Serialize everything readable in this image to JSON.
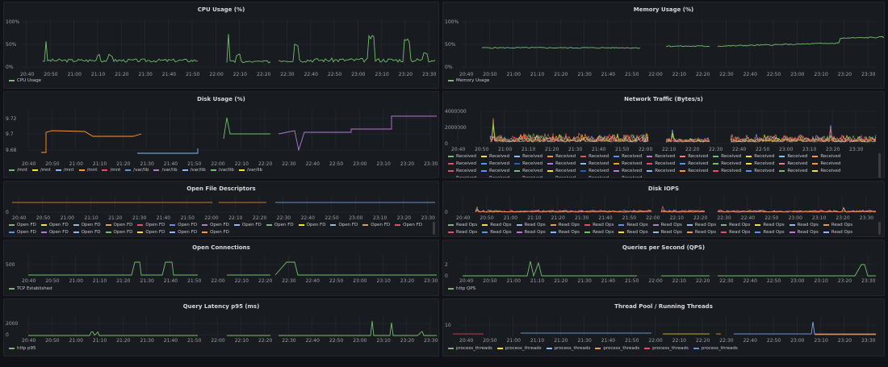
{
  "time_ticks_a": [
    "20:40",
    "20:50",
    "21:00",
    "21:10",
    "21:20",
    "21:30",
    "21:40",
    "21:50",
    "22:00",
    "22:10",
    "22:20",
    "22:30",
    "22:40",
    "22:50",
    "23:00",
    "23:10",
    "23:20",
    "23:30"
  ],
  "colors": {
    "green": "#73bf69",
    "yellow": "#fade2a",
    "orange": "#ff9830",
    "red": "#f2495c",
    "blue": "#5794f2",
    "purple": "#b877d9",
    "lblue": "#8ab8ff",
    "salmon": "#ff7383"
  },
  "panels": [
    {
      "id": "cpu",
      "title": "CPU Usage (%)",
      "y_ticks": [
        "100%",
        "50%",
        "0%"
      ],
      "legend": [
        {
          "label": "CPU Usage",
          "color": "#73bf69"
        }
      ]
    },
    {
      "id": "mem",
      "title": "Memory Usage (%)",
      "y_ticks": [
        "100%",
        "50%",
        "0%"
      ],
      "legend": [
        {
          "label": "Memory Usage",
          "color": "#73bf69"
        }
      ]
    },
    {
      "id": "disk",
      "title": "Disk Usage (%)",
      "y_ticks": [
        "9.72",
        "9.7",
        "9.68"
      ],
      "legend": [
        {
          "label": "/mnt",
          "color": "#73bf69"
        },
        {
          "label": "/mnt",
          "color": "#fade2a"
        },
        {
          "label": "/mnt",
          "color": "#8ab8ff"
        },
        {
          "label": "/mnt",
          "color": "#ff9830"
        },
        {
          "label": "/mnt",
          "color": "#f2495c"
        },
        {
          "label": "/var/lib",
          "color": "#5794f2"
        },
        {
          "label": "/var/lib",
          "color": "#b877d9"
        },
        {
          "label": "/var/lib",
          "color": "#8ab8ff"
        },
        {
          "label": "/var/lib",
          "color": "#73bf69"
        },
        {
          "label": "/var/lib",
          "color": "#fade2a"
        }
      ]
    },
    {
      "id": "net",
      "title": "Network Traffic (Bytes/s)",
      "y_ticks": [
        "4000000",
        "2000000",
        "0"
      ],
      "legend": [
        {
          "label": "Received",
          "color": "#73bf69"
        },
        {
          "label": "Received",
          "color": "#fade2a"
        },
        {
          "label": "Received",
          "color": "#8ab8ff"
        },
        {
          "label": "Received",
          "color": "#ff9830"
        },
        {
          "label": "Received",
          "color": "#f2495c"
        },
        {
          "label": "Received",
          "color": "#5794f2"
        },
        {
          "label": "Received",
          "color": "#b877d9"
        },
        {
          "label": "Received",
          "color": "#ff7383"
        },
        {
          "label": "Received",
          "color": "#73bf69"
        },
        {
          "label": "Received",
          "color": "#fade2a"
        },
        {
          "label": "Received",
          "color": "#8ab8ff"
        },
        {
          "label": "Received",
          "color": "#ff9830"
        },
        {
          "label": "Received",
          "color": "#f2495c"
        },
        {
          "label": "Received",
          "color": "#5794f2"
        },
        {
          "label": "Received",
          "color": "#1f60c4"
        },
        {
          "label": "Received",
          "color": "#b877d9"
        },
        {
          "label": "Received",
          "color": "#8ab8ff"
        },
        {
          "label": "Received",
          "color": "#ff9830"
        },
        {
          "label": "Received",
          "color": "#f2495c"
        },
        {
          "label": "Received",
          "color": "#5794f2"
        },
        {
          "label": "Received",
          "color": "#73bf69"
        },
        {
          "label": "Received",
          "color": "#fade2a"
        },
        {
          "label": "Received",
          "color": "#ff7383"
        },
        {
          "label": "Received",
          "color": "#ff9830"
        },
        {
          "label": "Received",
          "color": "#f2495c"
        },
        {
          "label": "Received",
          "color": "#5794f2"
        },
        {
          "label": "Received",
          "color": "#73bf69"
        },
        {
          "label": "Received",
          "color": "#fade2a"
        },
        {
          "label": "Received",
          "color": "#1f60c4"
        },
        {
          "label": "Received",
          "color": "#b877d9"
        },
        {
          "label": "Received",
          "color": "#8ab8ff"
        },
        {
          "label": "Received",
          "color": "#ff9830"
        },
        {
          "label": "Received",
          "color": "#f2495c"
        },
        {
          "label": "Received",
          "color": "#5794f2"
        },
        {
          "label": "Received",
          "color": "#73bf69"
        },
        {
          "label": "Received",
          "color": "#fade2a"
        },
        {
          "label": "Received",
          "color": "#ff7383"
        },
        {
          "label": "Received",
          "color": "#ff9830"
        },
        {
          "label": "Received",
          "color": "#f2495c"
        },
        {
          "label": "Received",
          "color": "#5794f2"
        },
        {
          "label": "Received",
          "color": "#73bf69"
        },
        {
          "label": "Received",
          "color": "#fade2a"
        }
      ]
    },
    {
      "id": "fd",
      "title": "Open File Descriptors",
      "y_ticks": [
        "0"
      ],
      "legend": [
        {
          "label": "Open FD",
          "color": "#73bf69"
        },
        {
          "label": "Open FD",
          "color": "#fade2a"
        },
        {
          "label": "Open FD",
          "color": "#8ab8ff"
        },
        {
          "label": "Open FD",
          "color": "#ff9830"
        },
        {
          "label": "Open FD",
          "color": "#f2495c"
        },
        {
          "label": "Open FD",
          "color": "#5794f2"
        },
        {
          "label": "Open FD",
          "color": "#b877d9"
        },
        {
          "label": "Open FD",
          "color": "#8ab8ff"
        },
        {
          "label": "Open FD",
          "color": "#73bf69"
        },
        {
          "label": "Open FD",
          "color": "#fade2a"
        },
        {
          "label": "Open FD",
          "color": "#8ab8ff"
        },
        {
          "label": "Open FD",
          "color": "#ff9830"
        },
        {
          "label": "Open FD",
          "color": "#f2495c"
        },
        {
          "label": "Open FD",
          "color": "#5794f2"
        },
        {
          "label": "Open FD",
          "color": "#b877d9"
        },
        {
          "label": "Open FD",
          "color": "#8ab8ff"
        },
        {
          "label": "Open FD",
          "color": "#73bf69"
        },
        {
          "label": "Open FD",
          "color": "#fade2a"
        },
        {
          "label": "Open FD",
          "color": "#8ab8ff"
        },
        {
          "label": "Open FD",
          "color": "#ff9830"
        }
      ]
    },
    {
      "id": "iops",
      "title": "Disk IOPS",
      "y_ticks": [
        "0"
      ],
      "legend": [
        {
          "label": "Read Ops",
          "color": "#73bf69"
        },
        {
          "label": "Read Ops",
          "color": "#fade2a"
        },
        {
          "label": "Read Ops",
          "color": "#8ab8ff"
        },
        {
          "label": "Read Ops",
          "color": "#ff9830"
        },
        {
          "label": "Read Ops",
          "color": "#f2495c"
        },
        {
          "label": "Read Ops",
          "color": "#5794f2"
        },
        {
          "label": "Read Ops",
          "color": "#b877d9"
        },
        {
          "label": "Read Ops",
          "color": "#8ab8ff"
        },
        {
          "label": "Read Ops",
          "color": "#73bf69"
        },
        {
          "label": "Read Ops",
          "color": "#fade2a"
        },
        {
          "label": "Read Ops",
          "color": "#8ab8ff"
        },
        {
          "label": "Read Ops",
          "color": "#ff9830"
        },
        {
          "label": "Read Ops",
          "color": "#f2495c"
        },
        {
          "label": "Read Ops",
          "color": "#5794f2"
        },
        {
          "label": "Read Ops",
          "color": "#b877d9"
        },
        {
          "label": "Read Ops",
          "color": "#8ab8ff"
        },
        {
          "label": "Read Ops",
          "color": "#73bf69"
        },
        {
          "label": "Read Ops",
          "color": "#fade2a"
        },
        {
          "label": "Read Ops",
          "color": "#8ab8ff"
        },
        {
          "label": "Read Ops",
          "color": "#ff9830"
        },
        {
          "label": "Read Ops",
          "color": "#f2495c"
        },
        {
          "label": "Read Ops",
          "color": "#5794f2"
        },
        {
          "label": "Read Ops",
          "color": "#b877d9"
        },
        {
          "label": "Read Ops",
          "color": "#8ab8ff"
        },
        {
          "label": "Read Ops",
          "color": "#73bf69"
        },
        {
          "label": "Read Ops",
          "color": "#fade2a"
        },
        {
          "label": "Read Ops",
          "color": "#8ab8ff"
        },
        {
          "label": "Read Ops",
          "color": "#ff9830"
        },
        {
          "label": "Read Ops",
          "color": "#f2495c"
        },
        {
          "label": "Read Ops",
          "color": "#5794f2"
        }
      ]
    },
    {
      "id": "conn",
      "title": "Open Connections",
      "y_ticks": [
        "500"
      ],
      "legend": [
        {
          "label": "TCP Established",
          "color": "#73bf69"
        }
      ]
    },
    {
      "id": "qps",
      "title": "Queries per Second (QPS)",
      "y_ticks": [
        "2",
        "0"
      ],
      "legend": [
        {
          "label": "http QPS",
          "color": "#73bf69"
        }
      ]
    },
    {
      "id": "lat",
      "title": "Query Latency p95 (ms)",
      "y_ticks": [
        "2000",
        "0"
      ],
      "legend": [
        {
          "label": "http p95",
          "color": "#73bf69"
        }
      ]
    },
    {
      "id": "thr",
      "title": "Thread Pool / Running Threads",
      "y_ticks": [
        "10"
      ],
      "legend": [
        {
          "label": "process_threads",
          "color": "#73bf69"
        },
        {
          "label": "process_threads",
          "color": "#fade2a"
        },
        {
          "label": "process_threads",
          "color": "#8ab8ff"
        },
        {
          "label": "process_threads",
          "color": "#ff9830"
        },
        {
          "label": "process_threads",
          "color": "#f2495c"
        },
        {
          "label": "process_threads",
          "color": "#5794f2"
        }
      ]
    }
  ]
}
